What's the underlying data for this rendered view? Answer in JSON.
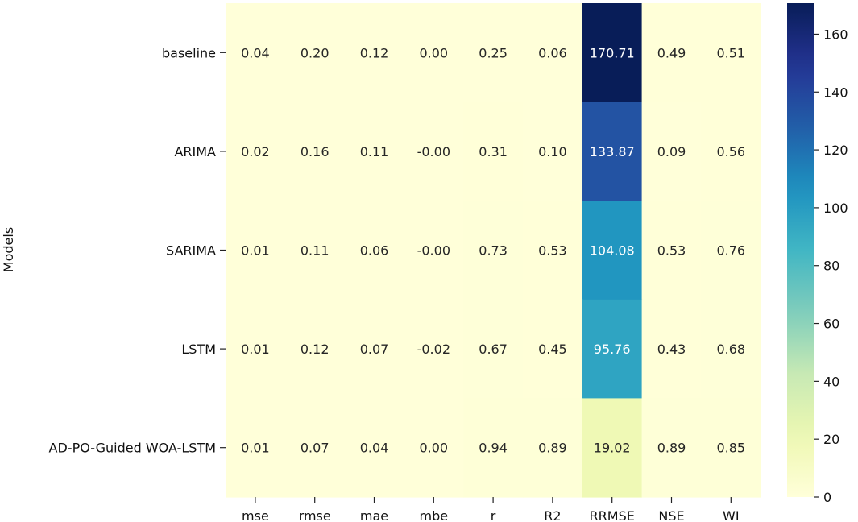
{
  "chart_data": {
    "type": "heatmap",
    "title": "",
    "xlabel": "",
    "ylabel": "Models",
    "x_categories": [
      "mse",
      "rmse",
      "mae",
      "mbe",
      "r",
      "R2",
      "RRMSE",
      "NSE",
      "WI"
    ],
    "y_categories": [
      "baseline",
      "ARIMA",
      "SARIMA",
      "LSTM",
      "AD-PO-Guided WOA-LSTM"
    ],
    "values": [
      [
        0.04,
        0.2,
        0.12,
        0.0,
        0.25,
        0.06,
        170.71,
        0.49,
        0.51
      ],
      [
        0.02,
        0.16,
        0.11,
        -0.0,
        0.31,
        0.1,
        133.87,
        0.09,
        0.56
      ],
      [
        0.01,
        0.11,
        0.06,
        -0.0,
        0.73,
        0.53,
        104.08,
        0.53,
        0.76
      ],
      [
        0.01,
        0.12,
        0.07,
        -0.02,
        0.67,
        0.45,
        95.76,
        0.43,
        0.68
      ],
      [
        0.01,
        0.07,
        0.04,
        0.0,
        0.94,
        0.89,
        19.02,
        0.89,
        0.85
      ]
    ],
    "annotations": [
      [
        "0.04",
        "0.20",
        "0.12",
        "0.00",
        "0.25",
        "0.06",
        "170.71",
        "0.49",
        "0.51"
      ],
      [
        "0.02",
        "0.16",
        "0.11",
        "-0.00",
        "0.31",
        "0.10",
        "133.87",
        "0.09",
        "0.56"
      ],
      [
        "0.01",
        "0.11",
        "0.06",
        "-0.00",
        "0.73",
        "0.53",
        "104.08",
        "0.53",
        "0.76"
      ],
      [
        "0.01",
        "0.12",
        "0.07",
        "-0.02",
        "0.67",
        "0.45",
        "95.76",
        "0.43",
        "0.68"
      ],
      [
        "0.01",
        "0.07",
        "0.04",
        "0.00",
        "0.94",
        "0.89",
        "19.02",
        "0.89",
        "0.85"
      ]
    ],
    "colormap": "YlGnBu",
    "colorbar": {
      "range": [
        0,
        170.71
      ],
      "ticks": [
        0,
        20,
        40,
        60,
        80,
        100,
        120,
        140,
        160
      ],
      "tick_labels": [
        "0",
        "20",
        "40",
        "60",
        "80",
        "100",
        "120",
        "140",
        "160"
      ]
    },
    "grid": false,
    "legend": "colorbar-right"
  }
}
